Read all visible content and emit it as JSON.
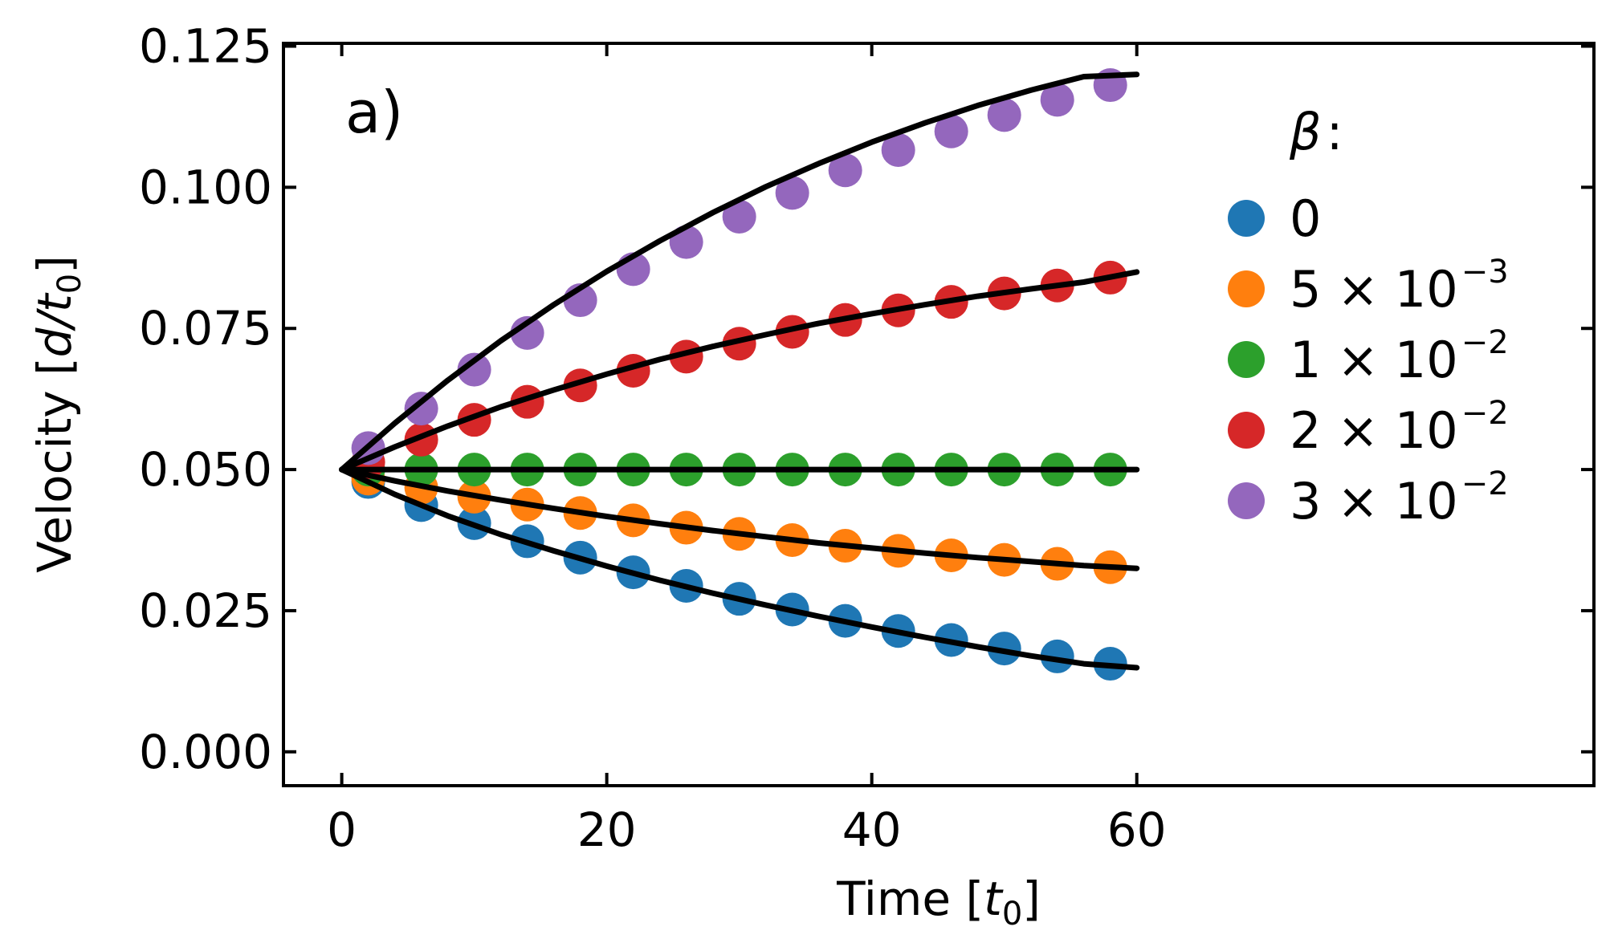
{
  "chart_data": {
    "type": "scatter",
    "panel_label": "a)",
    "xlabel": "Time [",
    "xlabel_sym": "t",
    "xlabel_sub": "0",
    "xlabel_end": "]",
    "ylabel": "Velocity [",
    "ylabel_sym": "d/t",
    "ylabel_sub": "0",
    "ylabel_end": "]",
    "xlim": [
      -4.4,
      94.5
    ],
    "ylim": [
      -0.006,
      0.1255
    ],
    "xticks": [
      0,
      20,
      40,
      60
    ],
    "xtick_labels": [
      "0",
      "20",
      "40",
      "60"
    ],
    "yticks": [
      0.0,
      0.025,
      0.05,
      0.075,
      0.1,
      0.125
    ],
    "ytick_labels": [
      "0.000",
      "0.025",
      "0.050",
      "0.075",
      "0.100",
      "0.125"
    ],
    "legend": {
      "title": "β",
      "title_suffix": ":",
      "placement": "right"
    },
    "x": [
      2,
      6,
      10,
      14,
      18,
      22,
      26,
      30,
      34,
      38,
      42,
      46,
      50,
      54,
      58
    ],
    "series": [
      {
        "name": "0",
        "label_main": "0",
        "label_exp": "",
        "color": "#1f77b4",
        "values": [
          0.0478,
          0.0437,
          0.0405,
          0.0373,
          0.0344,
          0.0318,
          0.0294,
          0.0271,
          0.0252,
          0.0232,
          0.0214,
          0.0198,
          0.0183,
          0.0169,
          0.0156
        ],
        "fit": [
          0.05,
          0.0456,
          0.0418,
          0.0385,
          0.0356,
          0.0329,
          0.0304,
          0.0281,
          0.026,
          0.024,
          0.0221,
          0.0203,
          0.0186,
          0.017,
          0.0156,
          0.0149
        ]
      },
      {
        "name": "5×10⁻³",
        "label_main": "5 × 10",
        "label_exp": "−3",
        "color": "#ff7f0e",
        "values": [
          0.0484,
          0.0468,
          0.0452,
          0.0438,
          0.0423,
          0.041,
          0.0397,
          0.0386,
          0.0375,
          0.0365,
          0.0356,
          0.0348,
          0.034,
          0.0333,
          0.0327
        ],
        "fit": [
          0.05,
          0.048,
          0.0462,
          0.0446,
          0.0431,
          0.0417,
          0.0404,
          0.0392,
          0.0381,
          0.037,
          0.0361,
          0.0352,
          0.0344,
          0.0337,
          0.033,
          0.0325
        ]
      },
      {
        "name": "1×10⁻²",
        "label_main": "1 × 10",
        "label_exp": "−2",
        "color": "#2ca02c",
        "values": [
          0.05,
          0.05,
          0.05,
          0.05,
          0.05,
          0.05,
          0.05,
          0.05,
          0.05,
          0.05,
          0.05,
          0.05,
          0.05,
          0.05,
          0.05
        ],
        "fit": [
          0.05,
          0.05,
          0.05,
          0.05,
          0.05,
          0.05,
          0.05,
          0.05,
          0.05,
          0.05,
          0.05,
          0.05,
          0.05,
          0.05,
          0.05,
          0.05
        ]
      },
      {
        "name": "2×10⁻²",
        "label_main": "2 × 10",
        "label_exp": "−2",
        "color": "#d62728",
        "values": [
          0.0513,
          0.0553,
          0.0588,
          0.062,
          0.0649,
          0.0675,
          0.07,
          0.0723,
          0.0744,
          0.0765,
          0.0782,
          0.0797,
          0.0812,
          0.0826,
          0.084
        ],
        "fit": [
          0.05,
          0.054,
          0.0577,
          0.0611,
          0.0641,
          0.0669,
          0.0695,
          0.0718,
          0.0739,
          0.0759,
          0.0776,
          0.0792,
          0.0807,
          0.082,
          0.0832,
          0.085
        ]
      },
      {
        "name": "3×10⁻²",
        "label_main": "3 × 10",
        "label_exp": "−2",
        "color": "#9467bd",
        "values": [
          0.0538,
          0.0608,
          0.0677,
          0.0742,
          0.08,
          0.0855,
          0.0903,
          0.0948,
          0.099,
          0.103,
          0.1066,
          0.1099,
          0.1128,
          0.1155,
          0.1181
        ],
        "fit": [
          0.05,
          0.0582,
          0.0658,
          0.0728,
          0.0792,
          0.0851,
          0.0905,
          0.0955,
          0.1001,
          0.1042,
          0.108,
          0.1114,
          0.1145,
          0.1172,
          0.1196,
          0.12
        ]
      }
    ],
    "fit_x": [
      0,
      4,
      8,
      12,
      16,
      20,
      24,
      28,
      32,
      36,
      40,
      44,
      48,
      52,
      56,
      60
    ],
    "fit_color": "#000000"
  }
}
